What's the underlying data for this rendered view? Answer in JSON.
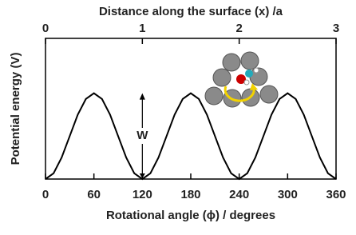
{
  "chart_data": {
    "type": "line",
    "title": "Distance along the surface (x) /a",
    "x_label": "Rotational angle (ϕ) / degrees",
    "y_label": "Potential energy (V)",
    "annotation": "W",
    "color": "#000000",
    "x": [
      0,
      10,
      20,
      30,
      40,
      50,
      60,
      70,
      80,
      90,
      100,
      110,
      120,
      130,
      140,
      150,
      160,
      170,
      180,
      190,
      200,
      210,
      220,
      230,
      240,
      250,
      260,
      270,
      280,
      290,
      300,
      310,
      320,
      330,
      340,
      350,
      360
    ],
    "values": [
      0,
      0.041,
      0.153,
      0.305,
      0.458,
      0.569,
      0.61,
      0.569,
      0.458,
      0.305,
      0.153,
      0.041,
      0,
      0.041,
      0.153,
      0.305,
      0.458,
      0.569,
      0.61,
      0.569,
      0.458,
      0.305,
      0.153,
      0.041,
      0,
      0.041,
      0.153,
      0.305,
      0.458,
      0.569,
      0.61,
      0.569,
      0.458,
      0.305,
      0.153,
      0.041,
      0
    ],
    "xlim": [
      0,
      360
    ],
    "xticks": [
      0,
      60,
      120,
      180,
      240,
      300,
      360
    ],
    "x2lim": [
      0,
      3
    ],
    "x2ticks": [
      0,
      1,
      2,
      3
    ],
    "ylim": [
      0,
      1
    ]
  }
}
